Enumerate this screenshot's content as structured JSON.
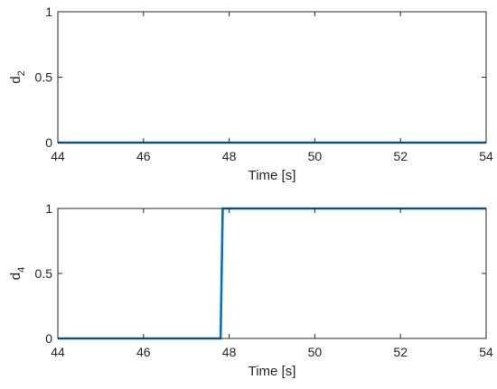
{
  "chart_data": [
    {
      "type": "line",
      "xlabel": "Time [s]",
      "ylabel": "d",
      "ylabel_subscript": "2",
      "xlim": [
        44,
        54
      ],
      "ylim": [
        0,
        1
      ],
      "xticks": [
        44,
        46,
        48,
        50,
        52,
        54
      ],
      "yticks": [
        0,
        0.5,
        1
      ],
      "xtick_labels": [
        "44",
        "46",
        "48",
        "50",
        "52",
        "54"
      ],
      "ytick_labels": [
        "0",
        "0.5",
        "1"
      ],
      "grid": false,
      "legend": "none",
      "series": [
        {
          "color": "#0072BD",
          "x": [
            44,
            54
          ],
          "y": [
            0,
            0
          ]
        }
      ]
    },
    {
      "type": "line",
      "xlabel": "Time [s]",
      "ylabel": "d",
      "ylabel_subscript": "4",
      "xlim": [
        44,
        54
      ],
      "ylim": [
        0,
        1
      ],
      "xticks": [
        44,
        46,
        48,
        50,
        52,
        54
      ],
      "yticks": [
        0,
        0.5,
        1
      ],
      "xtick_labels": [
        "44",
        "46",
        "48",
        "50",
        "52",
        "54"
      ],
      "ytick_labels": [
        "0",
        "0.5",
        "1"
      ],
      "grid": false,
      "legend": "none",
      "series": [
        {
          "color": "#0072BD",
          "x": [
            44,
            47.8,
            47.85,
            54
          ],
          "y": [
            0,
            0,
            1,
            1
          ]
        }
      ]
    }
  ]
}
